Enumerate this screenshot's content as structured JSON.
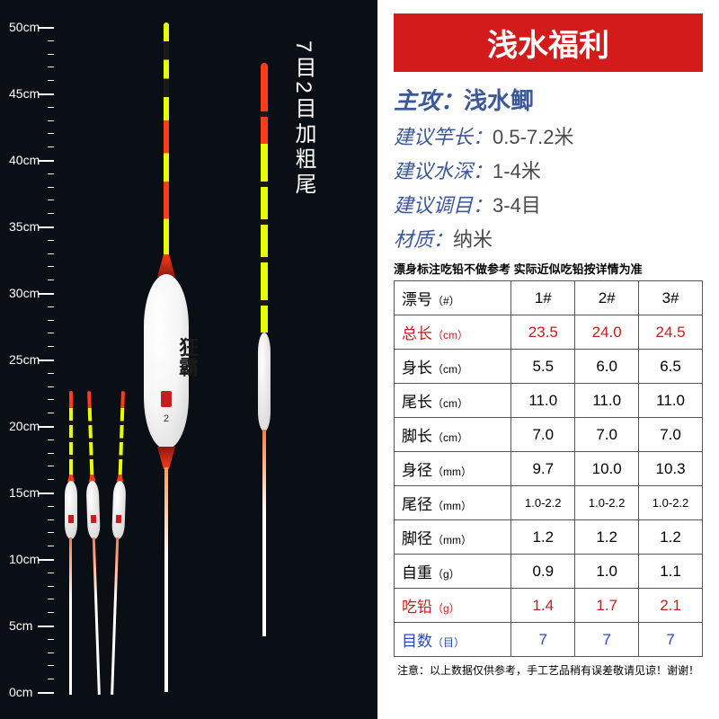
{
  "ruler": {
    "max_cm": 50,
    "marks": [
      0,
      5,
      10,
      15,
      20,
      25,
      30,
      35,
      40,
      45,
      50
    ]
  },
  "vert_label": "7目2目加粗尾",
  "main_float": {
    "brand": "狂霸",
    "number": "2"
  },
  "title_badge": "浅水福利",
  "specs": [
    {
      "k": "主攻：",
      "v": "浅水鲫",
      "highlight": true
    },
    {
      "k": "建议竿长：",
      "v": "0.5-7.2米"
    },
    {
      "k": "建议水深：",
      "v": "1-4米"
    },
    {
      "k": "建议调目：",
      "v": "3-4目"
    },
    {
      "k": "材质：",
      "v": "纳米"
    }
  ],
  "note": "漂身标注吃铅不做参考 实际近似吃铅按详情为准",
  "table": {
    "header": {
      "name": "漂号",
      "unit": "（#）",
      "cols": [
        "1#",
        "2#",
        "3#"
      ]
    },
    "rows": [
      {
        "name": "总长",
        "unit": "（cm）",
        "vals": [
          "23.5",
          "24.0",
          "24.5"
        ],
        "style": "red"
      },
      {
        "name": "身长",
        "unit": "（cm）",
        "vals": [
          "5.5",
          "6.0",
          "6.5"
        ]
      },
      {
        "name": "尾长",
        "unit": "（cm）",
        "vals": [
          "11.0",
          "11.0",
          "11.0"
        ]
      },
      {
        "name": "脚长",
        "unit": "（cm）",
        "vals": [
          "7.0",
          "7.0",
          "7.0"
        ]
      },
      {
        "name": "身径",
        "unit": "（mm）",
        "vals": [
          "9.7",
          "10.0",
          "10.3"
        ]
      },
      {
        "name": "尾径",
        "unit": "（mm）",
        "vals": [
          "1.0-2.2",
          "1.0-2.2",
          "1.0-2.2"
        ],
        "small": true
      },
      {
        "name": "脚径",
        "unit": "（mm）",
        "vals": [
          "1.2",
          "1.2",
          "1.2"
        ]
      },
      {
        "name": "自重",
        "unit": "（g）",
        "vals": [
          "0.9",
          "1.0",
          "1.1"
        ]
      },
      {
        "name": "吃铅",
        "unit": "（g）",
        "vals": [
          "1.4",
          "1.7",
          "2.1"
        ],
        "style": "red"
      },
      {
        "name": "目数",
        "unit": "（目）",
        "vals": [
          "7",
          "7",
          "7"
        ],
        "style": "blue"
      }
    ]
  },
  "footer_note": "注意：以上数据仅供参考，手工艺品稍有误差敬请见谅！谢谢！"
}
